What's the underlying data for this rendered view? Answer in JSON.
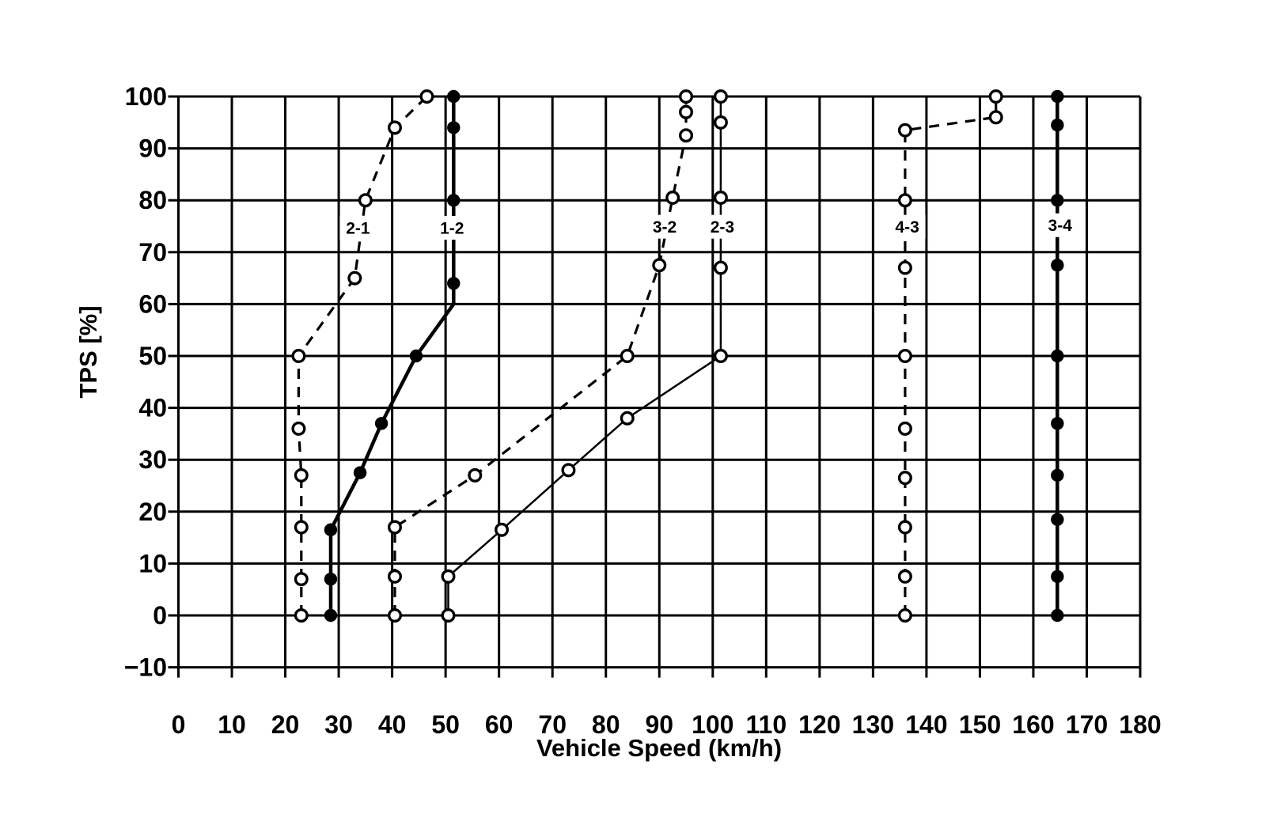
{
  "figure": {
    "background": "#ffffff",
    "ink": "#000000"
  },
  "chart_data": {
    "type": "line",
    "title": "",
    "xlabel": "Vehicle Speed (km/h)",
    "ylabel": "TPS [%]",
    "xlim": [
      0,
      180
    ],
    "ylim": [
      -10,
      100
    ],
    "grid": true,
    "legend": "none",
    "xticks": [
      0,
      10,
      20,
      30,
      40,
      50,
      60,
      70,
      80,
      90,
      100,
      110,
      120,
      130,
      140,
      150,
      160,
      170,
      180
    ],
    "yticks": [
      -10,
      0,
      10,
      20,
      30,
      40,
      50,
      60,
      70,
      80,
      90,
      100
    ],
    "series": [
      {
        "name": "2-1",
        "role": "downshift-curve",
        "line": "dashed",
        "marker": "open",
        "label": "2-1",
        "label_at": [
          33.6,
          74.7
        ],
        "points": [
          [
            23,
            0
          ],
          [
            23,
            7
          ],
          [
            23,
            17
          ],
          [
            23,
            27
          ],
          [
            22.5,
            36
          ],
          [
            22.5,
            50
          ],
          [
            33,
            65
          ],
          [
            35,
            80
          ],
          [
            40.5,
            94
          ],
          [
            46.5,
            100
          ]
        ],
        "no_marker_idx": []
      },
      {
        "name": "1-2",
        "role": "upshift-curve",
        "line": "solid-thick",
        "marker": "filled",
        "label": "1-2",
        "label_at": [
          51.2,
          74.7
        ],
        "points": [
          [
            28.5,
            0
          ],
          [
            28.5,
            7
          ],
          [
            28.5,
            16.5
          ],
          [
            34,
            27.5
          ],
          [
            38,
            37
          ],
          [
            44.5,
            50
          ],
          [
            51.5,
            60
          ],
          [
            51.5,
            64
          ],
          [
            51.5,
            80
          ],
          [
            51.5,
            94
          ],
          [
            51.5,
            100
          ]
        ],
        "no_marker_idx": [
          6
        ]
      },
      {
        "name": "3-2",
        "role": "downshift-curve",
        "line": "dashed",
        "marker": "open",
        "label": "3-2",
        "label_at": [
          91.0,
          74.9
        ],
        "points": [
          [
            40.5,
            0
          ],
          [
            40.5,
            7.5
          ],
          [
            40.5,
            17
          ],
          [
            55.5,
            27
          ],
          [
            84,
            50
          ],
          [
            90,
            67.5
          ],
          [
            92.5,
            80.5
          ],
          [
            95,
            92.5
          ],
          [
            95,
            97
          ],
          [
            95,
            100
          ]
        ],
        "no_marker_idx": []
      },
      {
        "name": "2-3",
        "role": "upshift-curve",
        "line": "solid-thin",
        "marker": "open",
        "label": "2-3",
        "label_at": [
          101.8,
          74.9
        ],
        "points": [
          [
            50.5,
            0
          ],
          [
            50.5,
            7.5
          ],
          [
            60.5,
            16.5
          ],
          [
            73,
            28
          ],
          [
            84,
            38
          ],
          [
            101.5,
            50
          ],
          [
            101.5,
            67
          ],
          [
            101.5,
            80.5
          ],
          [
            101.5,
            95
          ],
          [
            101.5,
            100
          ]
        ],
        "no_marker_idx": []
      },
      {
        "name": "4-3",
        "role": "downshift-curve",
        "line": "dashed",
        "marker": "open",
        "label": "4-3",
        "label_at": [
          136.4,
          74.9
        ],
        "points": [
          [
            136,
            0
          ],
          [
            136,
            7.5
          ],
          [
            136,
            17
          ],
          [
            136,
            26.5
          ],
          [
            136,
            36
          ],
          [
            136,
            50
          ],
          [
            136,
            67
          ],
          [
            136,
            80
          ],
          [
            136,
            93.5
          ],
          [
            153,
            96
          ],
          [
            153,
            100
          ]
        ],
        "no_marker_idx": []
      },
      {
        "name": "3-4",
        "role": "upshift-curve",
        "line": "solid-thick",
        "marker": "filled",
        "label": "3-4",
        "label_at": [
          165.0,
          75.2
        ],
        "points": [
          [
            164.5,
            0
          ],
          [
            164.5,
            7.5
          ],
          [
            164.5,
            18.5
          ],
          [
            164.5,
            27
          ],
          [
            164.5,
            37
          ],
          [
            164.5,
            50
          ],
          [
            164.5,
            67.5
          ],
          [
            164.5,
            80
          ],
          [
            164.5,
            94.5
          ],
          [
            164.5,
            100
          ]
        ],
        "no_marker_idx": []
      }
    ]
  }
}
